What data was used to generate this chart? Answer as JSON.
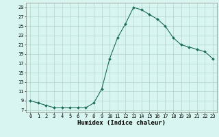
{
  "x": [
    0,
    1,
    2,
    3,
    4,
    5,
    6,
    7,
    8,
    9,
    10,
    11,
    12,
    13,
    14,
    15,
    16,
    17,
    18,
    19,
    20,
    21,
    22,
    23
  ],
  "y": [
    9,
    8.5,
    8,
    7.5,
    7.5,
    7.5,
    7.5,
    7.5,
    8.5,
    11.5,
    18,
    22.5,
    25.5,
    29,
    28.5,
    27.5,
    26.5,
    25,
    22.5,
    21,
    20.5,
    20,
    19.5,
    18
  ],
  "line_color": "#1a6b5a",
  "marker": "D",
  "marker_size": 2.0,
  "bg_color": "#d8f5f0",
  "grid_color": "#b0d4cc",
  "xlabel": "Humidex (Indice chaleur)",
  "xlim": [
    -0.5,
    23.5
  ],
  "ylim": [
    6.5,
    30
  ],
  "yticks": [
    7,
    9,
    11,
    13,
    15,
    17,
    19,
    21,
    23,
    25,
    27,
    29
  ],
  "xticks": [
    0,
    1,
    2,
    3,
    4,
    5,
    6,
    7,
    8,
    9,
    10,
    11,
    12,
    13,
    14,
    15,
    16,
    17,
    18,
    19,
    20,
    21,
    22,
    23
  ],
  "tick_fontsize": 5.0,
  "xlabel_fontsize": 6.5,
  "linewidth": 0.8
}
